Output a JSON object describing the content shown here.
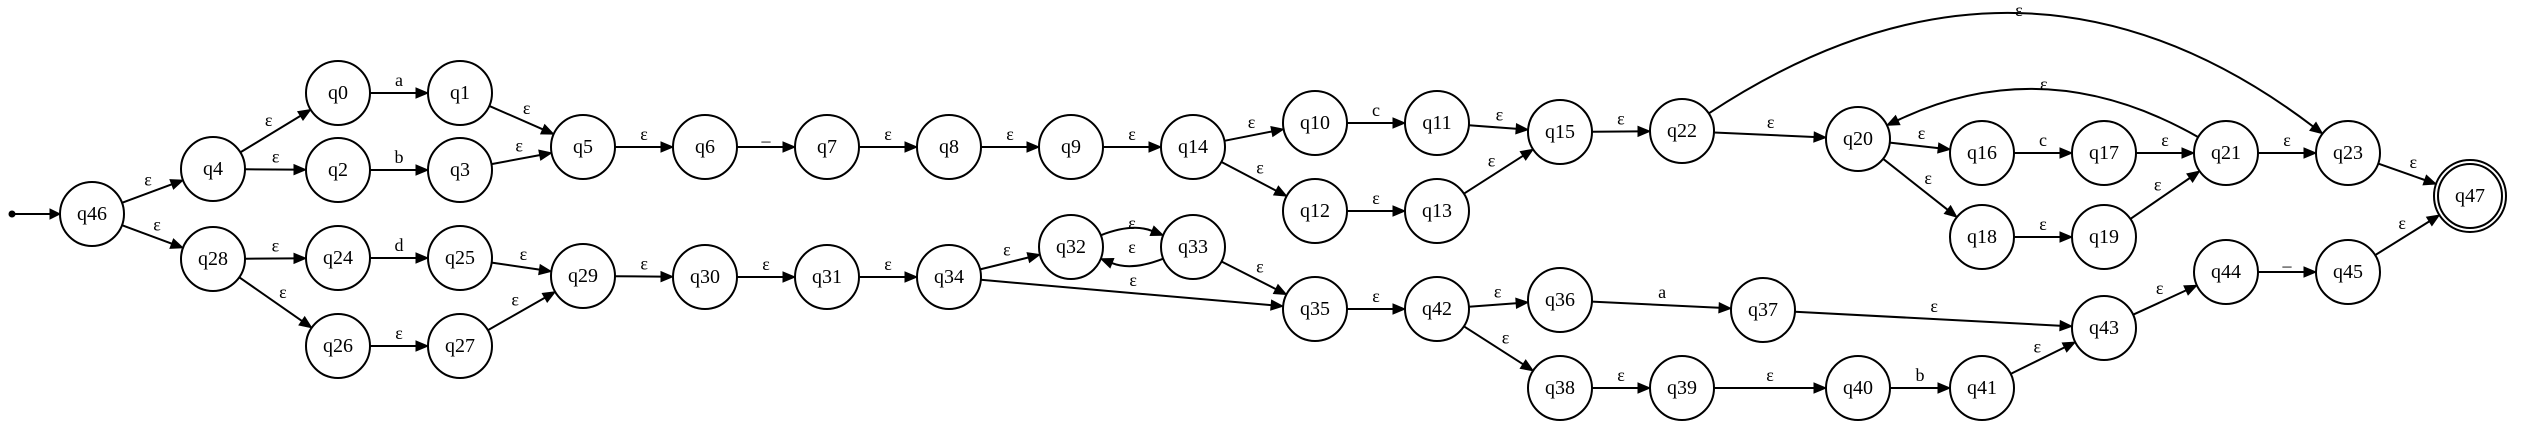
{
  "start_state": "q46",
  "accepting_states": [
    "q47"
  ],
  "states": [
    "q0",
    "q1",
    "q2",
    "q3",
    "q4",
    "q5",
    "q6",
    "q7",
    "q8",
    "q9",
    "q10",
    "q11",
    "q12",
    "q13",
    "q14",
    "q15",
    "q16",
    "q17",
    "q18",
    "q19",
    "q20",
    "q21",
    "q22",
    "q23",
    "q24",
    "q25",
    "q26",
    "q27",
    "q28",
    "q29",
    "q30",
    "q31",
    "q32",
    "q33",
    "q34",
    "q35",
    "q36",
    "q37",
    "q38",
    "q39",
    "q40",
    "q41",
    "q42",
    "q43",
    "q44",
    "q45",
    "q46",
    "q47"
  ],
  "transitions": [
    {
      "from": "q46",
      "to": "q4",
      "label": "ε"
    },
    {
      "from": "q46",
      "to": "q28",
      "label": "ε"
    },
    {
      "from": "q4",
      "to": "q0",
      "label": "ε"
    },
    {
      "from": "q4",
      "to": "q2",
      "label": "ε"
    },
    {
      "from": "q0",
      "to": "q1",
      "label": "a"
    },
    {
      "from": "q2",
      "to": "q3",
      "label": "b"
    },
    {
      "from": "q1",
      "to": "q5",
      "label": "ε"
    },
    {
      "from": "q3",
      "to": "q5",
      "label": "ε"
    },
    {
      "from": "q5",
      "to": "q6",
      "label": "ε"
    },
    {
      "from": "q6",
      "to": "q7",
      "label": "_"
    },
    {
      "from": "q7",
      "to": "q8",
      "label": "ε"
    },
    {
      "from": "q8",
      "to": "q9",
      "label": "ε"
    },
    {
      "from": "q9",
      "to": "q14",
      "label": "ε"
    },
    {
      "from": "q14",
      "to": "q10",
      "label": "ε"
    },
    {
      "from": "q14",
      "to": "q12",
      "label": "ε"
    },
    {
      "from": "q10",
      "to": "q11",
      "label": "c"
    },
    {
      "from": "q12",
      "to": "q13",
      "label": "ε"
    },
    {
      "from": "q11",
      "to": "q15",
      "label": "ε"
    },
    {
      "from": "q13",
      "to": "q15",
      "label": "ε"
    },
    {
      "from": "q15",
      "to": "q22",
      "label": "ε"
    },
    {
      "from": "q22",
      "to": "q20",
      "label": "ε"
    },
    {
      "from": "q22",
      "to": "q23",
      "label": "ε"
    },
    {
      "from": "q20",
      "to": "q16",
      "label": "ε"
    },
    {
      "from": "q20",
      "to": "q18",
      "label": "ε"
    },
    {
      "from": "q16",
      "to": "q17",
      "label": "c"
    },
    {
      "from": "q18",
      "to": "q19",
      "label": "ε"
    },
    {
      "from": "q17",
      "to": "q21",
      "label": "ε"
    },
    {
      "from": "q19",
      "to": "q21",
      "label": "ε"
    },
    {
      "from": "q21",
      "to": "q20",
      "label": "ε"
    },
    {
      "from": "q21",
      "to": "q23",
      "label": "ε"
    },
    {
      "from": "q23",
      "to": "q47",
      "label": "ε"
    },
    {
      "from": "q28",
      "to": "q24",
      "label": "ε"
    },
    {
      "from": "q28",
      "to": "q26",
      "label": "ε"
    },
    {
      "from": "q24",
      "to": "q25",
      "label": "d"
    },
    {
      "from": "q26",
      "to": "q27",
      "label": "ε"
    },
    {
      "from": "q25",
      "to": "q29",
      "label": "ε"
    },
    {
      "from": "q27",
      "to": "q29",
      "label": "ε"
    },
    {
      "from": "q29",
      "to": "q30",
      "label": "ε"
    },
    {
      "from": "q30",
      "to": "q31",
      "label": "ε"
    },
    {
      "from": "q31",
      "to": "q34",
      "label": "ε"
    },
    {
      "from": "q34",
      "to": "q32",
      "label": "ε"
    },
    {
      "from": "q34",
      "to": "q35",
      "label": "ε"
    },
    {
      "from": "q32",
      "to": "q33",
      "label": "ε"
    },
    {
      "from": "q33",
      "to": "q32",
      "label": "ε"
    },
    {
      "from": "q33",
      "to": "q35",
      "label": "ε"
    },
    {
      "from": "q35",
      "to": "q42",
      "label": "ε"
    },
    {
      "from": "q42",
      "to": "q36",
      "label": "ε"
    },
    {
      "from": "q42",
      "to": "q38",
      "label": "ε"
    },
    {
      "from": "q36",
      "to": "q37",
      "label": "a"
    },
    {
      "from": "q38",
      "to": "q39",
      "label": "ε"
    },
    {
      "from": "q39",
      "to": "q40",
      "label": "ε"
    },
    {
      "from": "q40",
      "to": "q41",
      "label": "b"
    },
    {
      "from": "q37",
      "to": "q43",
      "label": "ε"
    },
    {
      "from": "q41",
      "to": "q43",
      "label": "ε"
    },
    {
      "from": "q43",
      "to": "q44",
      "label": "ε"
    },
    {
      "from": "q44",
      "to": "q45",
      "label": "_"
    },
    {
      "from": "q45",
      "to": "q47",
      "label": "ε"
    }
  ]
}
